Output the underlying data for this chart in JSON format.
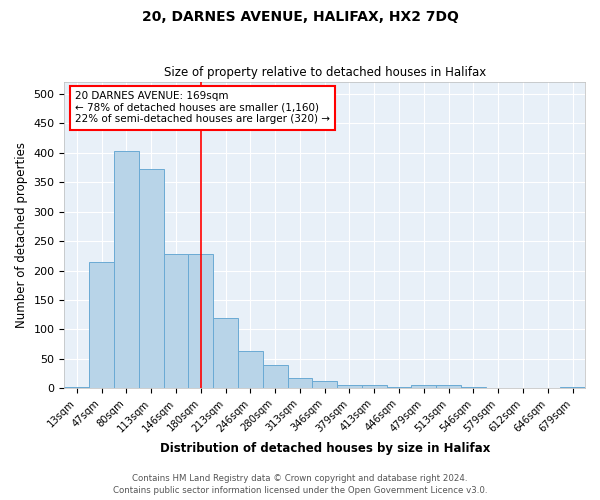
{
  "title1": "20, DARNES AVENUE, HALIFAX, HX2 7DQ",
  "title2": "Size of property relative to detached houses in Halifax",
  "xlabel": "Distribution of detached houses by size in Halifax",
  "ylabel": "Number of detached properties",
  "categories": [
    "13sqm",
    "47sqm",
    "80sqm",
    "113sqm",
    "146sqm",
    "180sqm",
    "213sqm",
    "246sqm",
    "280sqm",
    "313sqm",
    "346sqm",
    "379sqm",
    "413sqm",
    "446sqm",
    "479sqm",
    "513sqm",
    "546sqm",
    "579sqm",
    "612sqm",
    "646sqm",
    "679sqm"
  ],
  "values": [
    3,
    215,
    403,
    373,
    228,
    228,
    120,
    63,
    40,
    18,
    13,
    6,
    6,
    2,
    5,
    6,
    2,
    1,
    1,
    1,
    3
  ],
  "bar_color": "#b8d4e8",
  "bar_edge_color": "#6aaad4",
  "red_line_index": 5,
  "annotation_lines": [
    "20 DARNES AVENUE: 169sqm",
    "← 78% of detached houses are smaller (1,160)",
    "22% of semi-detached houses are larger (320) →"
  ],
  "ylim": [
    0,
    520
  ],
  "yticks": [
    0,
    50,
    100,
    150,
    200,
    250,
    300,
    350,
    400,
    450,
    500
  ],
  "bg_color": "#e8f0f8",
  "footer1": "Contains HM Land Registry data © Crown copyright and database right 2024.",
  "footer2": "Contains public sector information licensed under the Open Government Licence v3.0."
}
